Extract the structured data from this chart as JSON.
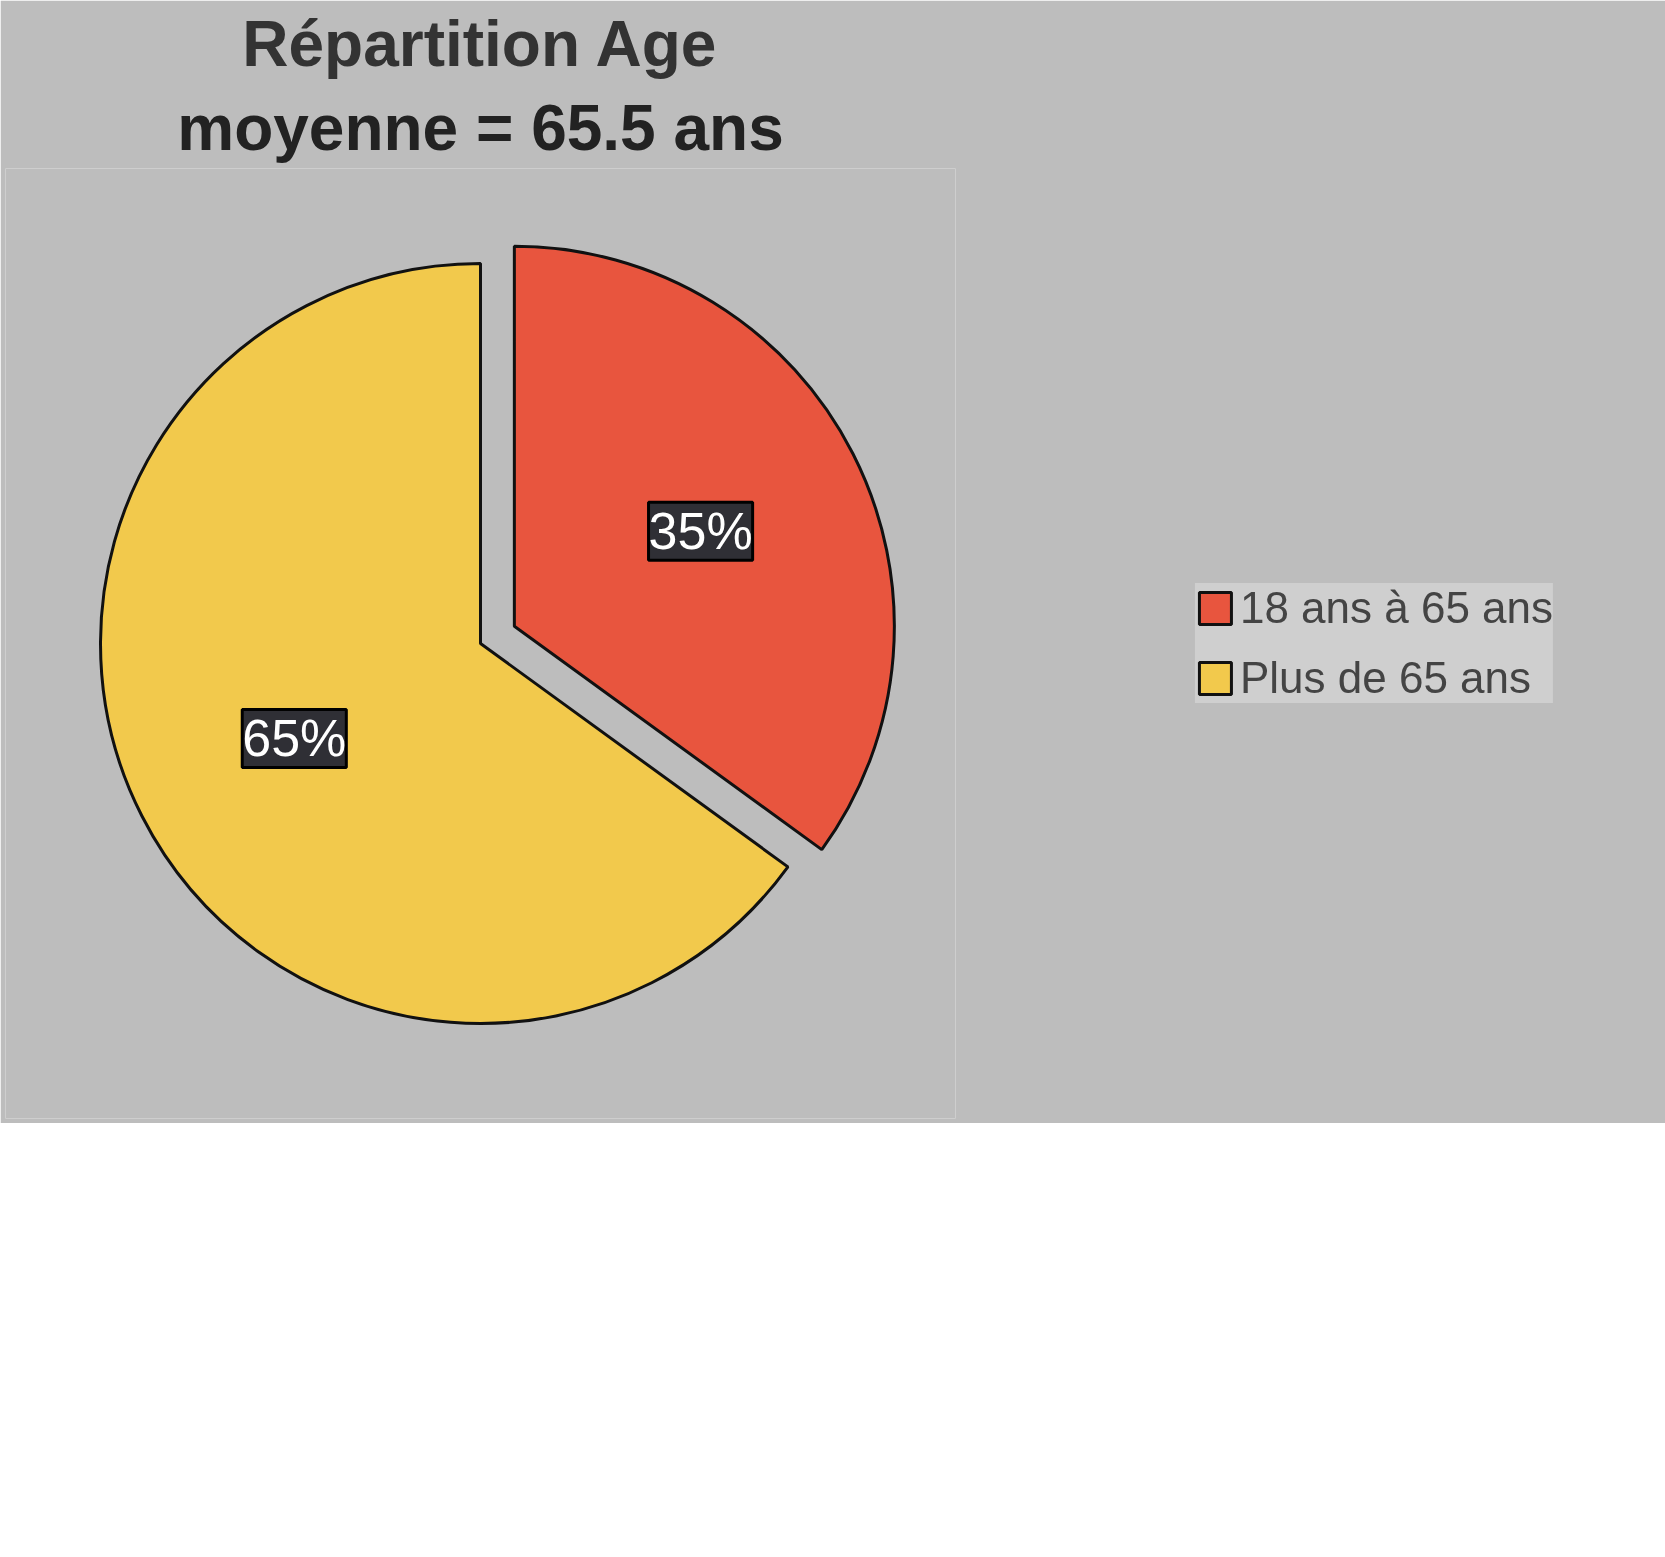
{
  "chart_data": {
    "type": "pie",
    "title": "Répartition Age",
    "subtitle": "moyenne = 65.5 ans",
    "categories": [
      "18 ans à 65 ans",
      "Plus de 65 ans"
    ],
    "values": [
      35,
      65
    ],
    "colors": [
      "#e8553e",
      "#f2c94c"
    ],
    "value_labels": [
      "35%",
      "65%"
    ],
    "legend": "right"
  }
}
